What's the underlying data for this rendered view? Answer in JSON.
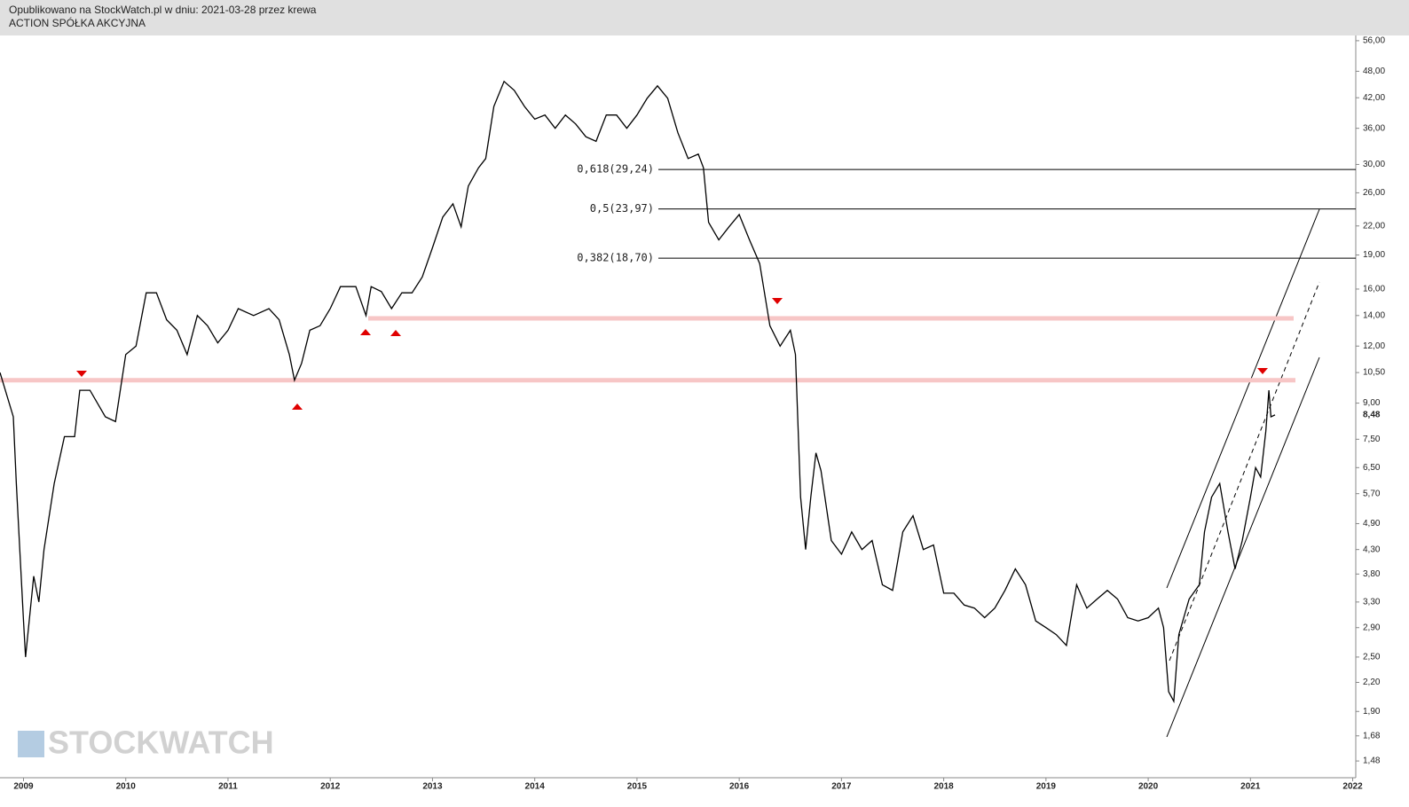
{
  "header": {
    "line1": "Opublikowano na StockWatch.pl w dniu: 2021-03-28 przez krewa",
    "line2": "ACTION SPÓŁKA AKCYJNA"
  },
  "watermark": "STOCKWATCH",
  "chart_data": {
    "type": "line",
    "log_scale": true,
    "color": "#000000",
    "xlim": [
      2008.77,
      2022.03
    ],
    "ylim": [
      1.36,
      57.5
    ],
    "xticks": [
      2009,
      2010,
      2011,
      2012,
      2013,
      2014,
      2015,
      2016,
      2017,
      2018,
      2019,
      2020,
      2021,
      2022
    ],
    "yticks": [
      {
        "value": 56,
        "label": "56,00"
      },
      {
        "value": 48,
        "label": "48,00"
      },
      {
        "value": 42,
        "label": "42,00"
      },
      {
        "value": 36,
        "label": "36,00"
      },
      {
        "value": 30,
        "label": "30,00"
      },
      {
        "value": 26,
        "label": "26,00"
      },
      {
        "value": 22,
        "label": "22,00"
      },
      {
        "value": 19,
        "label": "19,00"
      },
      {
        "value": 16,
        "label": "16,00"
      },
      {
        "value": 14,
        "label": "14,00"
      },
      {
        "value": 12,
        "label": "12,00"
      },
      {
        "value": 10.5,
        "label": "10,50"
      },
      {
        "value": 9,
        "label": "9,00"
      },
      {
        "value": 7.5,
        "label": "7,50"
      },
      {
        "value": 6.5,
        "label": "6,50"
      },
      {
        "value": 5.7,
        "label": "5,70"
      },
      {
        "value": 4.9,
        "label": "4,90"
      },
      {
        "value": 4.3,
        "label": "4,30"
      },
      {
        "value": 3.8,
        "label": "3,80"
      },
      {
        "value": 3.3,
        "label": "3,30"
      },
      {
        "value": 2.9,
        "label": "2,90"
      },
      {
        "value": 2.5,
        "label": "2,50"
      },
      {
        "value": 2.2,
        "label": "2,20"
      },
      {
        "value": 1.9,
        "label": "1,90"
      },
      {
        "value": 1.68,
        "label": "1,68"
      },
      {
        "value": 1.48,
        "label": "1,48"
      }
    ],
    "last_price": {
      "value": 8.48,
      "label": "8,48"
    },
    "fib_levels": [
      {
        "value": 29.24,
        "label": "0,618(29,24)"
      },
      {
        "value": 23.97,
        "label": "0,5(23,97)"
      },
      {
        "value": 18.7,
        "label": "0,382(18,70)"
      }
    ],
    "support_levels": [
      13.8,
      10.1
    ],
    "x": [
      2008.77,
      2008.9,
      2008.93,
      2009.0,
      2009.02,
      2009.1,
      2009.15,
      2009.2,
      2009.3,
      2009.4,
      2009.5,
      2009.55,
      2009.65,
      2009.8,
      2009.9,
      2010.0,
      2010.1,
      2010.2,
      2010.3,
      2010.4,
      2010.5,
      2010.6,
      2010.7,
      2010.8,
      2010.9,
      2011.0,
      2011.1,
      2011.25,
      2011.4,
      2011.5,
      2011.6,
      2011.65,
      2011.72,
      2011.8,
      2011.9,
      2012.0,
      2012.1,
      2012.25,
      2012.35,
      2012.4,
      2012.5,
      2012.6,
      2012.7,
      2012.8,
      2012.9,
      2013.0,
      2013.1,
      2013.2,
      2013.28,
      2013.35,
      2013.45,
      2013.52,
      2013.6,
      2013.7,
      2013.8,
      2013.9,
      2014.0,
      2014.1,
      2014.2,
      2014.3,
      2014.4,
      2014.5,
      2014.6,
      2014.7,
      2014.8,
      2014.9,
      2015.0,
      2015.1,
      2015.2,
      2015.3,
      2015.4,
      2015.5,
      2015.6,
      2015.65,
      2015.7,
      2015.8,
      2015.9,
      2016.0,
      2016.1,
      2016.2,
      2016.3,
      2016.4,
      2016.5,
      2016.55,
      2016.6,
      2016.65,
      2016.7,
      2016.75,
      2016.8,
      2016.9,
      2017.0,
      2017.1,
      2017.2,
      2017.3,
      2017.4,
      2017.5,
      2017.6,
      2017.7,
      2017.8,
      2017.9,
      2018.0,
      2018.1,
      2018.2,
      2018.3,
      2018.4,
      2018.5,
      2018.6,
      2018.7,
      2018.8,
      2018.9,
      2019.0,
      2019.1,
      2019.2,
      2019.3,
      2019.4,
      2019.5,
      2019.6,
      2019.7,
      2019.8,
      2019.9,
      2020.0,
      2020.1,
      2020.15,
      2020.2,
      2020.25,
      2020.3,
      2020.4,
      2020.5,
      2020.55,
      2020.62,
      2020.7,
      2020.78,
      2020.85,
      2020.92,
      2021.0,
      2021.05,
      2021.1,
      2021.15,
      2021.18,
      2021.2,
      2021.24
    ],
    "values": [
      10.5,
      8.4,
      6.0,
      3.0,
      2.5,
      3.76,
      3.3,
      4.3,
      6.0,
      7.6,
      7.6,
      9.6,
      9.6,
      8.4,
      8.2,
      11.5,
      12.0,
      15.7,
      15.7,
      13.7,
      13.0,
      11.5,
      14.0,
      13.3,
      12.2,
      13.0,
      14.5,
      14.0,
      14.5,
      13.7,
      11.5,
      10.1,
      11.0,
      13.0,
      13.3,
      14.5,
      16.2,
      16.2,
      14.0,
      16.2,
      15.8,
      14.5,
      15.7,
      15.7,
      17.0,
      19.7,
      23.0,
      24.6,
      21.9,
      26.9,
      29.5,
      30.9,
      40.2,
      45.6,
      43.6,
      40.2,
      37.7,
      38.5,
      36.0,
      38.5,
      36.8,
      34.5,
      33.7,
      38.5,
      38.5,
      36.0,
      38.5,
      41.9,
      44.6,
      41.9,
      35.2,
      30.9,
      31.6,
      29.5,
      22.4,
      20.5,
      21.9,
      23.3,
      20.5,
      18.2,
      13.3,
      12.0,
      13.0,
      11.5,
      5.6,
      4.3,
      5.6,
      7.0,
      6.4,
      4.5,
      4.2,
      4.7,
      4.3,
      4.5,
      3.6,
      3.5,
      4.7,
      5.1,
      4.3,
      4.4,
      3.45,
      3.45,
      3.25,
      3.2,
      3.05,
      3.2,
      3.5,
      3.9,
      3.6,
      3.0,
      2.9,
      2.8,
      2.65,
      3.6,
      3.2,
      3.35,
      3.5,
      3.35,
      3.05,
      3.0,
      3.05,
      3.2,
      2.9,
      2.1,
      2.0,
      2.8,
      3.35,
      3.6,
      4.7,
      5.6,
      6.0,
      4.7,
      3.9,
      4.5,
      5.6,
      6.5,
      6.2,
      7.8,
      9.6,
      8.4,
      8.48
    ]
  }
}
